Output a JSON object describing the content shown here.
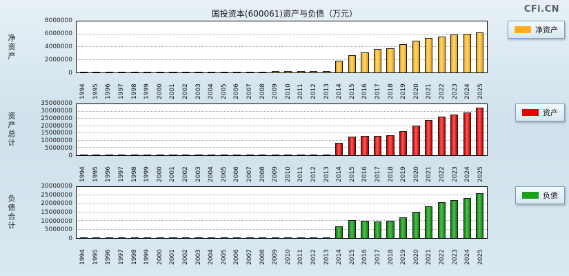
{
  "page": {
    "title": "国投资本(600061)资产与负债（万元）",
    "logo": "CFi.CN"
  },
  "chart_data": [
    {
      "type": "bar",
      "id": "net-assets",
      "ylabel": "净资产",
      "legend": "净资产",
      "ylim": [
        0,
        8000000
      ],
      "yticks": [
        0,
        2000000,
        4000000,
        6000000,
        8000000
      ],
      "grid": true,
      "legend_position": "right",
      "colors": {
        "dark": "#E89C10",
        "light": "#FFDC78",
        "legend": "#FFAD1F"
      },
      "categories": [
        "1994",
        "1995",
        "1996",
        "1997",
        "1998",
        "1999",
        "2000",
        "2001",
        "2002",
        "2003",
        "2004",
        "2005",
        "2006",
        "2007",
        "2008",
        "2009",
        "2010",
        "2011",
        "2012",
        "2013",
        "2014",
        "2015",
        "2016",
        "2017",
        "2018",
        "2019",
        "2020",
        "2021",
        "2022",
        "2023",
        "2024",
        "2025"
      ],
      "values": [
        50000,
        55000,
        60000,
        70000,
        80000,
        90000,
        95000,
        100000,
        105000,
        110000,
        115000,
        120000,
        130000,
        150000,
        160000,
        170000,
        180000,
        190000,
        200000,
        210000,
        1800000,
        2700000,
        3100000,
        3700000,
        3800000,
        4400000,
        5000000,
        5400000,
        5600000,
        5900000,
        6100000,
        6300000
      ]
    },
    {
      "type": "bar",
      "id": "total-assets",
      "ylabel": "资产总计",
      "legend": "资产",
      "ylim": [
        0,
        35000000
      ],
      "yticks": [
        0,
        5000000,
        10000000,
        15000000,
        20000000,
        25000000,
        30000000,
        35000000
      ],
      "grid": true,
      "legend_position": "right",
      "colors": {
        "dark": "#B50000",
        "light": "#FF5A5A",
        "legend": "#E60000"
      },
      "categories": [
        "1994",
        "1995",
        "1996",
        "1997",
        "1998",
        "1999",
        "2000",
        "2001",
        "2002",
        "2003",
        "2004",
        "2005",
        "2006",
        "2007",
        "2008",
        "2009",
        "2010",
        "2011",
        "2012",
        "2013",
        "2014",
        "2015",
        "2016",
        "2017",
        "2018",
        "2019",
        "2020",
        "2021",
        "2022",
        "2023",
        "2024",
        "2025"
      ],
      "values": [
        120000,
        125000,
        130000,
        140000,
        150000,
        160000,
        165000,
        170000,
        175000,
        180000,
        185000,
        190000,
        200000,
        220000,
        240000,
        250000,
        260000,
        270000,
        280000,
        300000,
        8500000,
        13000000,
        13200000,
        13400000,
        13800000,
        16500000,
        20500000,
        24000000,
        26500000,
        28000000,
        29500000,
        32500000
      ]
    },
    {
      "type": "bar",
      "id": "total-liabilities",
      "ylabel": "负债合计",
      "legend": "负债",
      "ylim": [
        0,
        30000000
      ],
      "yticks": [
        0,
        5000000,
        10000000,
        15000000,
        20000000,
        25000000,
        30000000
      ],
      "grid": true,
      "legend_position": "right",
      "colors": {
        "dark": "#0E7A0E",
        "light": "#50C050",
        "legend": "#1B9E1B"
      },
      "categories": [
        "1994",
        "1995",
        "1996",
        "1997",
        "1998",
        "1999",
        "2000",
        "2001",
        "2002",
        "2003",
        "2004",
        "2005",
        "2006",
        "2007",
        "2008",
        "2009",
        "2010",
        "2011",
        "2012",
        "2013",
        "2014",
        "2015",
        "2016",
        "2017",
        "2018",
        "2019",
        "2020",
        "2021",
        "2022",
        "2023",
        "2024",
        "2025"
      ],
      "values": [
        70000,
        70000,
        75000,
        80000,
        85000,
        90000,
        90000,
        95000,
        95000,
        100000,
        100000,
        105000,
        110000,
        120000,
        130000,
        135000,
        140000,
        145000,
        150000,
        160000,
        7000000,
        10500000,
        10000000,
        9700000,
        10000000,
        12000000,
        15500000,
        18500000,
        21000000,
        22200000,
        23500000,
        26500000
      ]
    }
  ]
}
